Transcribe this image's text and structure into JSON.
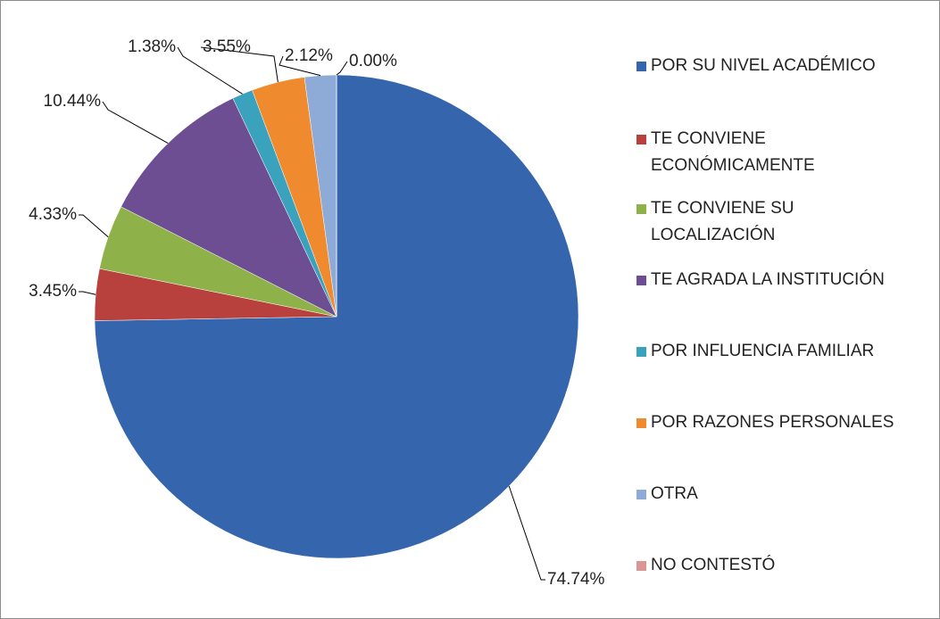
{
  "chart_data": {
    "type": "pie",
    "categories": [
      "POR SU NIVEL ACADÉMICO",
      "TE CONVIENE ECONÓMICAMENTE",
      "TE CONVIENE SU LOCALIZACIÓN",
      "TE AGRADA LA INSTITUCIÓN",
      "POR INFLUENCIA FAMILIAR",
      "POR RAZONES PERSONALES",
      "OTRA",
      "NO CONTESTÓ"
    ],
    "values": [
      74.74,
      3.45,
      4.33,
      10.44,
      1.38,
      3.55,
      2.12,
      0.0
    ],
    "value_labels": [
      "74.74%",
      "3.45%",
      "4.33%",
      "10.44%",
      "1.38%",
      "3.55%",
      "2.12%",
      "0.00%"
    ],
    "colors": [
      "#3566ad",
      "#b8403d",
      "#8fb14a",
      "#6e4e93",
      "#3aa2bd",
      "#ef8a2e",
      "#8eaad6",
      "#d99694"
    ],
    "legend": "right"
  }
}
